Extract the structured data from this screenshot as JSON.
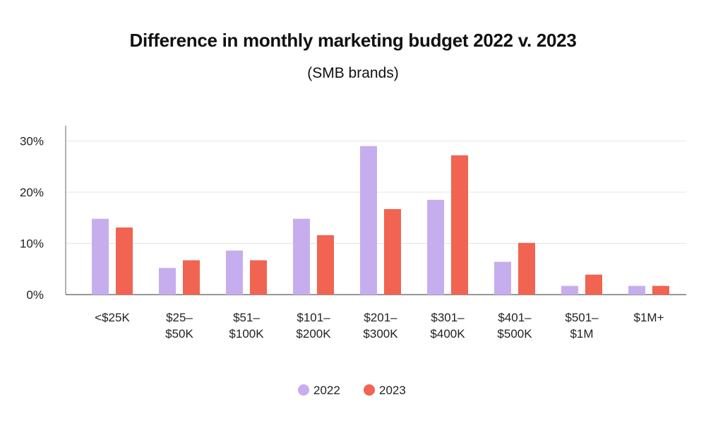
{
  "chart_data": {
    "type": "bar",
    "title": "Difference in monthly marketing budget 2022 v. 2023",
    "subtitle": "(SMB brands)",
    "categories": [
      [
        "<$25K"
      ],
      [
        "$25–",
        "$50K"
      ],
      [
        "$51–",
        "$100K"
      ],
      [
        "$101–",
        "$200K"
      ],
      [
        "$201–",
        "$300K"
      ],
      [
        "$301–",
        "$400K"
      ],
      [
        "$401–",
        "$500K"
      ],
      [
        "$501–",
        "$1M"
      ],
      [
        "$1M+"
      ]
    ],
    "series": [
      {
        "name": "2022",
        "color": "#c6aeee",
        "values": [
          14.8,
          5.2,
          8.6,
          14.8,
          29.0,
          18.5,
          6.4,
          1.7,
          1.7
        ]
      },
      {
        "name": "2023",
        "color": "#f06451",
        "values": [
          13.1,
          6.7,
          6.7,
          11.6,
          16.7,
          27.2,
          10.1,
          3.9,
          1.7
        ]
      }
    ],
    "yticks": [
      0,
      10,
      20,
      30
    ],
    "ytick_labels": [
      "0%",
      "10%",
      "20%",
      "30%"
    ],
    "ylim": [
      0,
      32
    ],
    "grid": true,
    "legend": "bottom-center"
  }
}
